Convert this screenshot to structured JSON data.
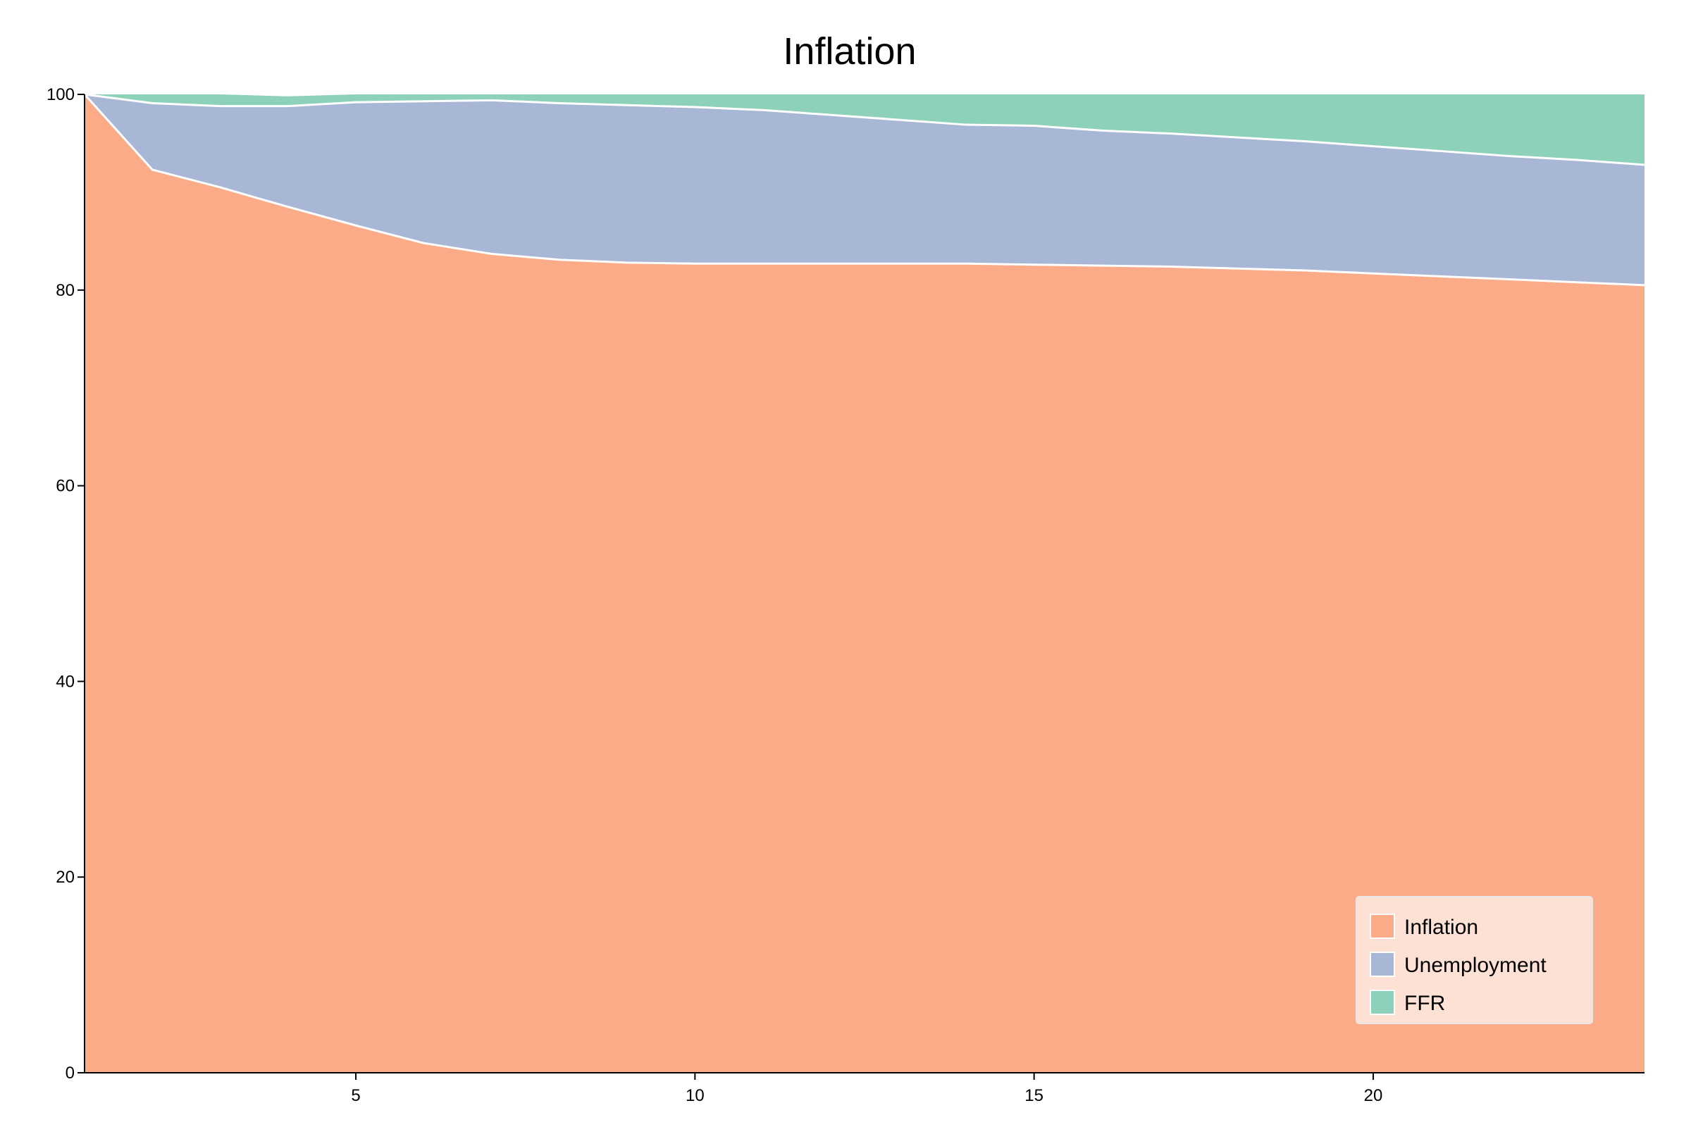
{
  "chart_data": {
    "type": "area",
    "stacked": true,
    "title": "Inflation",
    "xlabel": "",
    "ylabel": "",
    "xlim": [
      1,
      24
    ],
    "ylim": [
      0,
      100
    ],
    "x_ticks": [
      5,
      10,
      15,
      20
    ],
    "y_ticks": [
      0,
      20,
      40,
      60,
      80,
      100
    ],
    "grid": false,
    "legend": "bottom-right",
    "x": [
      1,
      2,
      3,
      4,
      5,
      6,
      7,
      8,
      9,
      10,
      11,
      12,
      13,
      14,
      15,
      16,
      17,
      18,
      19,
      20,
      21,
      22,
      23,
      24
    ],
    "series": [
      {
        "name": "Inflation",
        "color": "#fcab89",
        "values": [
          100,
          92.3,
          90.5,
          88.5,
          86.6,
          84.8,
          83.7,
          83.1,
          82.8,
          82.7,
          82.7,
          82.7,
          82.7,
          82.7,
          82.6,
          82.5,
          82.4,
          82.2,
          82.0,
          81.7,
          81.4,
          81.1,
          80.8,
          80.5
        ],
        "legend_label": "Inflation"
      },
      {
        "name": "Unemployment",
        "color": "#a9b7d6",
        "values": [
          0,
          6.8,
          8.3,
          10.3,
          12.6,
          14.5,
          15.7,
          16.0,
          16.1,
          16.0,
          15.7,
          15.2,
          14.7,
          14.2,
          14.2,
          13.8,
          13.6,
          13.4,
          13.2,
          13.0,
          12.8,
          12.6,
          12.5,
          12.3
        ],
        "legend_label": "Unemployment"
      },
      {
        "name": "FFR",
        "color": "#8dd1bb",
        "values": [
          0,
          0.9,
          1.2,
          1.0,
          0.8,
          0.7,
          0.6,
          0.9,
          1.1,
          1.3,
          1.6,
          2.1,
          2.6,
          3.1,
          3.2,
          3.7,
          4.0,
          4.4,
          4.8,
          5.3,
          5.8,
          6.3,
          6.7,
          7.2
        ],
        "legend_label": "FFR"
      }
    ]
  }
}
